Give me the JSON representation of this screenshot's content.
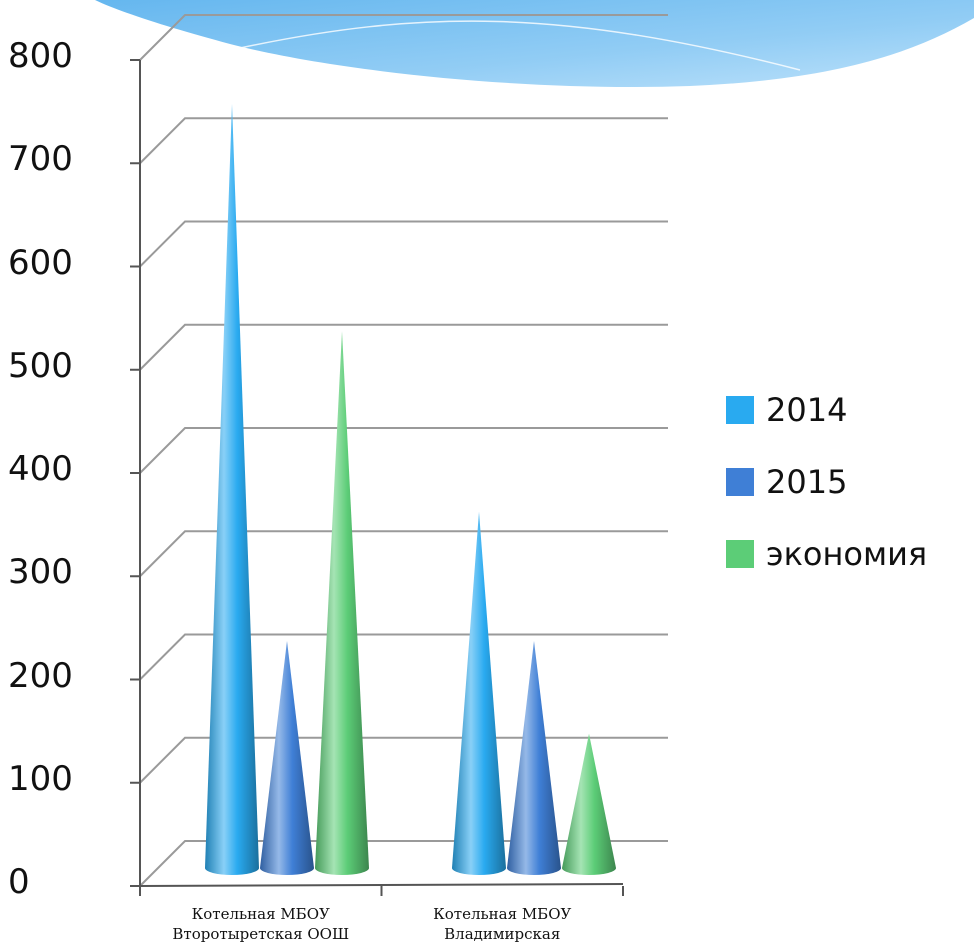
{
  "chart_data": {
    "type": "bar",
    "bar_shape": "cone",
    "categories": [
      [
        "Котельная МБОУ",
        "Второтыретская ООШ"
      ],
      [
        "Котельная МБОУ",
        "Владимирская"
      ]
    ],
    "series": [
      {
        "name": "2014",
        "values": [
          740,
          345
        ],
        "color": "#29aaf0"
      },
      {
        "name": "2015",
        "values": [
          220,
          220
        ],
        "color": "#3f7fd6"
      },
      {
        "name": "экономия",
        "values": [
          520,
          130
        ],
        "color": "#5ccd77"
      }
    ],
    "y_ticks": [
      "0",
      "100",
      "200",
      "300",
      "400",
      "500",
      "600",
      "700",
      "800"
    ],
    "ylim": [
      0,
      800
    ],
    "grid": true,
    "legend_position": "right"
  }
}
